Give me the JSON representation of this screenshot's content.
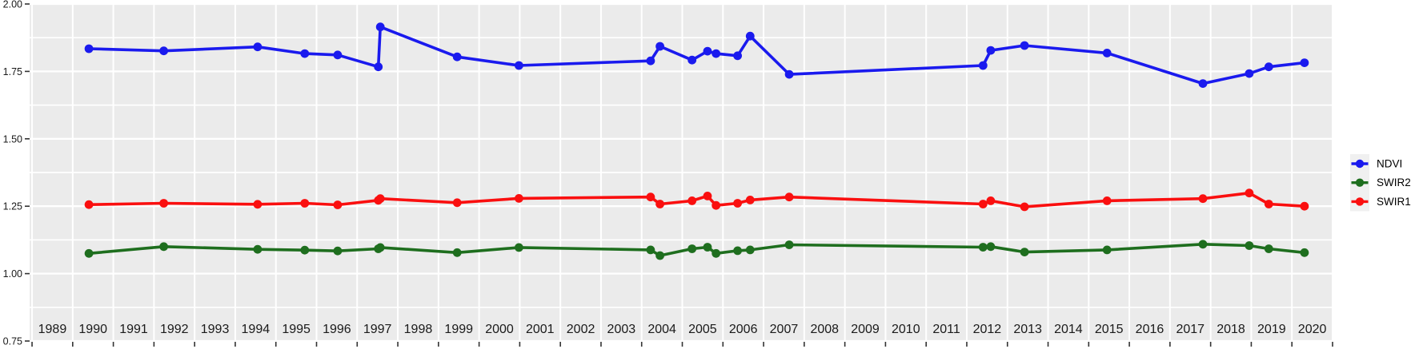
{
  "chart_data": {
    "type": "line",
    "title": "",
    "xlabel": "",
    "ylabel": "",
    "xlim": [
      1988.44,
      2020.52
    ],
    "ylim": [
      0.75,
      2.0
    ],
    "grid": true,
    "panel_bg_color": "#EBEBEB",
    "grid_color": "#FFFFFF",
    "tick_color": "#333333",
    "axis_text_color": "#1a1a1a",
    "x_tick_labels": [
      "1989",
      "1990",
      "1991",
      "1992",
      "1993",
      "1994",
      "1995",
      "1996",
      "1997",
      "1998",
      "1999",
      "2000",
      "2001",
      "2002",
      "2003",
      "2004",
      "2005",
      "2006",
      "2007",
      "2008",
      "2009",
      "2010",
      "2011",
      "2012",
      "2013",
      "2014",
      "2015",
      "2016",
      "2017",
      "2018",
      "2019",
      "2020"
    ],
    "x_tick_years": [
      1989,
      1990,
      1991,
      1992,
      1993,
      1994,
      1995,
      1996,
      1997,
      1998,
      1999,
      2000,
      2001,
      2002,
      2003,
      2004,
      2005,
      2006,
      2007,
      2008,
      2009,
      2010,
      2011,
      2012,
      2013,
      2014,
      2015,
      2016,
      2017,
      2018,
      2019,
      2020
    ],
    "x_gridline_positions": [
      1988.5,
      1989.5,
      1990.5,
      1991.5,
      1992.5,
      1993.5,
      1994.5,
      1995.5,
      1996.5,
      1997.5,
      1998.5,
      1999.5,
      2000.5,
      2001.5,
      2002.5,
      2003.5,
      2004.5,
      2005.5,
      2006.5,
      2007.5,
      2008.5,
      2009.5,
      2010.5,
      2011.5,
      2012.5,
      2013.5,
      2014.5,
      2015.5,
      2016.5,
      2017.5,
      2018.5,
      2019.5,
      2020.5
    ],
    "y_tick_labels": [
      "2.00",
      "1.75",
      "1.50",
      "1.25",
      "1.00",
      "0.75"
    ],
    "y_major_breaks": [
      2.0,
      1.75,
      1.5,
      1.25,
      1.0,
      0.75
    ],
    "y_minor_breaks": [
      1.875,
      1.625,
      1.375,
      1.125,
      0.875
    ],
    "x": [
      1989.9,
      1991.74,
      1994.05,
      1995.21,
      1996.02,
      1997.02,
      1997.07,
      1998.96,
      2000.48,
      2003.72,
      2003.95,
      2004.74,
      2005.12,
      2005.33,
      2005.86,
      2006.17,
      2007.13,
      2011.9,
      2012.09,
      2012.92,
      2014.95,
      2017.31,
      2018.45,
      2018.93,
      2019.81
    ],
    "series": [
      {
        "name": "NDVI",
        "color": "#1a1aee",
        "values": [
          1.834,
          1.826,
          1.841,
          1.816,
          1.811,
          1.767,
          1.915,
          1.804,
          1.772,
          1.789,
          1.843,
          1.792,
          1.825,
          1.816,
          1.808,
          1.881,
          1.739,
          1.772,
          1.828,
          1.846,
          1.818,
          1.705,
          1.742,
          1.767,
          1.782
        ]
      },
      {
        "name": "SWIR2",
        "color": "#1e6e1e",
        "values": [
          1.075,
          1.1,
          1.09,
          1.087,
          1.084,
          1.092,
          1.097,
          1.078,
          1.097,
          1.088,
          1.067,
          1.092,
          1.098,
          1.075,
          1.085,
          1.088,
          1.107,
          1.098,
          1.1,
          1.08,
          1.088,
          1.109,
          1.104,
          1.092,
          1.078
        ]
      },
      {
        "name": "SWIR1",
        "color": "#fa0f0f",
        "values": [
          1.256,
          1.261,
          1.257,
          1.261,
          1.255,
          1.272,
          1.278,
          1.263,
          1.279,
          1.284,
          1.258,
          1.27,
          1.288,
          1.253,
          1.261,
          1.273,
          1.284,
          1.258,
          1.27,
          1.248,
          1.27,
          1.278,
          1.299,
          1.258,
          1.25
        ]
      }
    ],
    "legend_position": "right",
    "legend_entries": [
      "NDVI",
      "SWIR2",
      "SWIR1"
    ],
    "legend_key_bg_color": "#F0F0F0"
  }
}
